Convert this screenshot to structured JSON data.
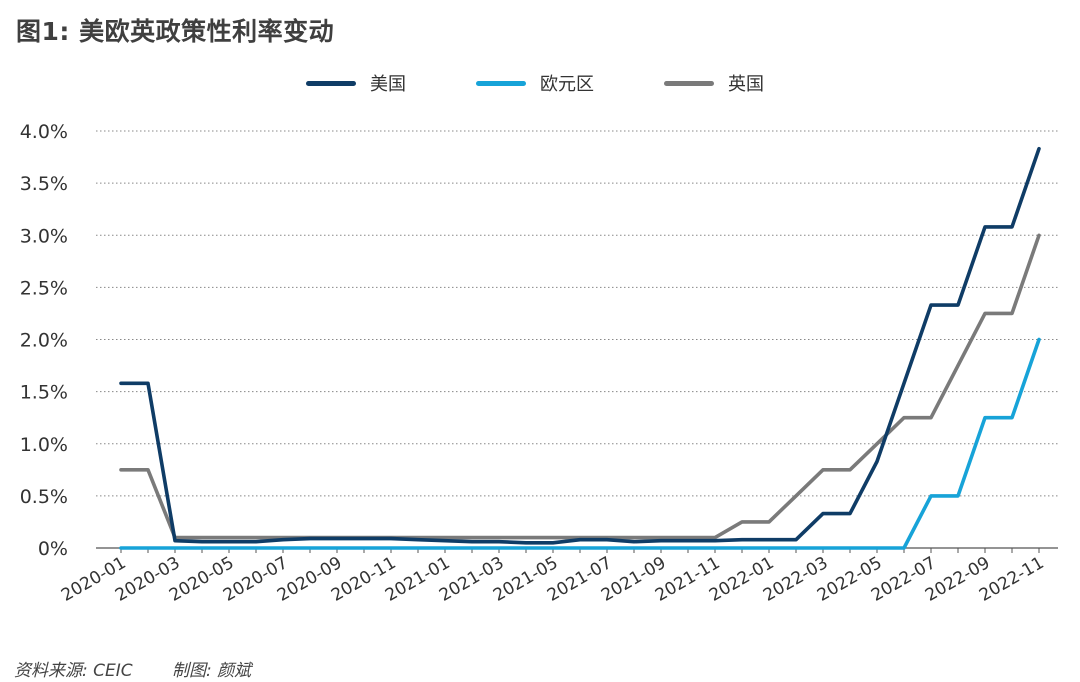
{
  "title": "图1: 美欧英政策性利率变动",
  "footer": {
    "source": "资料来源: CEIC",
    "author": "制图: 颜斌"
  },
  "colors": {
    "us": "#0f3c66",
    "ez": "#17a3d8",
    "uk": "#7a7a7a",
    "grid": "#888888",
    "axis": "#555555"
  },
  "chart_data": {
    "type": "line",
    "title": "",
    "xlabel": "",
    "ylabel": "",
    "ylim": [
      0,
      4.0
    ],
    "yticks": [
      "0%",
      "0.5%",
      "1.0%",
      "1.5%",
      "2.0%",
      "2.5%",
      "3.0%",
      "3.5%",
      "4.0%"
    ],
    "grid": true,
    "legend_position": "top-center",
    "x": [
      "2020-01",
      "2020-02",
      "2020-03",
      "2020-04",
      "2020-05",
      "2020-06",
      "2020-07",
      "2020-08",
      "2020-09",
      "2020-10",
      "2020-11",
      "2020-12",
      "2021-01",
      "2021-02",
      "2021-03",
      "2021-04",
      "2021-05",
      "2021-06",
      "2021-07",
      "2021-08",
      "2021-09",
      "2021-10",
      "2021-11",
      "2021-12",
      "2022-01",
      "2022-02",
      "2022-03",
      "2022-04",
      "2022-05",
      "2022-06",
      "2022-07",
      "2022-08",
      "2022-09",
      "2022-10",
      "2022-11"
    ],
    "xtick_labels": [
      "2020-01",
      "2020-03",
      "2020-05",
      "2020-07",
      "2020-09",
      "2020-11",
      "2021-01",
      "2021-03",
      "2021-05",
      "2021-07",
      "2021-09",
      "2021-11",
      "2022-01",
      "2022-03",
      "2022-05",
      "2022-07",
      "2022-09",
      "2022-11"
    ],
    "series": [
      {
        "name": "美国",
        "color": "#0f3c66",
        "values": [
          1.58,
          1.58,
          0.07,
          0.06,
          0.06,
          0.06,
          0.08,
          0.09,
          0.09,
          0.09,
          0.09,
          0.08,
          0.07,
          0.06,
          0.06,
          0.05,
          0.05,
          0.08,
          0.08,
          0.06,
          0.07,
          0.07,
          0.07,
          0.08,
          0.08,
          0.08,
          0.33,
          0.33,
          0.83,
          1.58,
          2.33,
          2.33,
          3.08,
          3.08,
          3.83
        ]
      },
      {
        "name": "欧元区",
        "color": "#17a3d8",
        "values": [
          0,
          0,
          0,
          0,
          0,
          0,
          0,
          0,
          0,
          0,
          0,
          0,
          0,
          0,
          0,
          0,
          0,
          0,
          0,
          0,
          0,
          0,
          0,
          0,
          0,
          0,
          0,
          0,
          0,
          0,
          0.5,
          0.5,
          1.25,
          1.25,
          2.0
        ]
      },
      {
        "name": "英国",
        "color": "#7a7a7a",
        "values": [
          0.75,
          0.75,
          0.1,
          0.1,
          0.1,
          0.1,
          0.1,
          0.1,
          0.1,
          0.1,
          0.1,
          0.1,
          0.1,
          0.1,
          0.1,
          0.1,
          0.1,
          0.1,
          0.1,
          0.1,
          0.1,
          0.1,
          0.1,
          0.25,
          0.25,
          0.5,
          0.75,
          0.75,
          1.0,
          1.25,
          1.25,
          1.75,
          2.25,
          2.25,
          3.0
        ]
      }
    ]
  }
}
